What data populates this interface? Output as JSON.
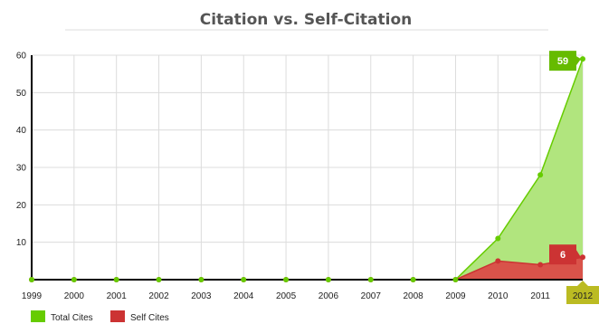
{
  "chart_data": {
    "type": "area",
    "title": "Citation vs. Self-Citation",
    "xlabel": "",
    "ylabel": "",
    "categories": [
      "1999",
      "2000",
      "2001",
      "2002",
      "2003",
      "2004",
      "2005",
      "2006",
      "2007",
      "2008",
      "2009",
      "2010",
      "2011",
      "2012"
    ],
    "ylim": [
      0,
      60
    ],
    "yticks": [
      "10",
      "20",
      "30",
      "40",
      "50",
      "60"
    ],
    "grid": true,
    "legend_position": "bottom-left",
    "series": [
      {
        "name": "Total Cites",
        "color": "#66cc00",
        "fill": "#b1e57e",
        "values": [
          0,
          0,
          0,
          0,
          0,
          0,
          0,
          0,
          0,
          0,
          0,
          11,
          28,
          59
        ]
      },
      {
        "name": "Self Cites",
        "color": "#cc3333",
        "fill": "#d9534a",
        "values": [
          0,
          0,
          0,
          0,
          0,
          0,
          0,
          0,
          0,
          0,
          0,
          5,
          4,
          6
        ]
      }
    ],
    "callouts": [
      {
        "series": "Total Cites",
        "label": "59",
        "color": "#66bb00"
      },
      {
        "series": "Self Cites",
        "label": "6",
        "color": "#cc3333"
      }
    ],
    "highlighted_category": {
      "label": "2012",
      "color": "#bbbb22"
    }
  }
}
